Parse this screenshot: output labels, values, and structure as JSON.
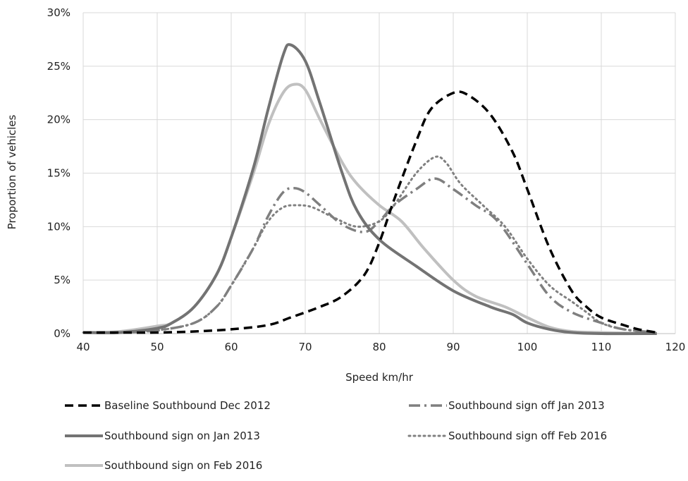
{
  "chart_data": {
    "type": "line",
    "xlabel": "Speed km/hr",
    "ylabel": "Proportion  of vehicles",
    "xlim": [
      40,
      120
    ],
    "ylim": [
      0,
      30
    ],
    "x_ticks": [
      "40",
      "50",
      "60",
      "70",
      "80",
      "90",
      "100",
      "110",
      "120"
    ],
    "x_tick_values": [
      40,
      50,
      60,
      70,
      80,
      90,
      100,
      110,
      120
    ],
    "y_ticks": [
      "0%",
      "5%",
      "10%",
      "15%",
      "20%",
      "25%",
      "30%"
    ],
    "y_tick_values": [
      0,
      5,
      10,
      15,
      20,
      25,
      30
    ],
    "grid": true,
    "legend_position": "bottom",
    "series": [
      {
        "name": "Baseline Southbound Dec 2012",
        "color": "#000000",
        "dash": "long-dash",
        "points": [
          [
            40,
            0.1
          ],
          [
            45,
            0.1
          ],
          [
            50,
            0.1
          ],
          [
            55,
            0.2
          ],
          [
            60,
            0.4
          ],
          [
            65,
            0.8
          ],
          [
            68,
            1.5
          ],
          [
            72,
            2.5
          ],
          [
            75,
            3.5
          ],
          [
            78,
            5.5
          ],
          [
            80,
            8.5
          ],
          [
            82,
            12.5
          ],
          [
            85,
            18
          ],
          [
            87,
            21
          ],
          [
            90,
            22.5
          ],
          [
            92,
            22.3
          ],
          [
            95,
            20.5
          ],
          [
            98,
            17
          ],
          [
            100,
            13.5
          ],
          [
            103,
            8
          ],
          [
            106,
            4
          ],
          [
            108,
            2.5
          ],
          [
            110,
            1.5
          ],
          [
            113,
            0.8
          ],
          [
            115,
            0.4
          ],
          [
            117.5,
            0.1
          ]
        ]
      },
      {
        "name": "Southbound sign off Jan 2013",
        "color": "#7f7f7f",
        "dash": "dash-dot",
        "points": [
          [
            40,
            0.1
          ],
          [
            45,
            0.1
          ],
          [
            50,
            0.3
          ],
          [
            55,
            1.0
          ],
          [
            58,
            2.5
          ],
          [
            60,
            4.5
          ],
          [
            63,
            8
          ],
          [
            65,
            11
          ],
          [
            67,
            13.2
          ],
          [
            68.5,
            13.6
          ],
          [
            70,
            13.2
          ],
          [
            72,
            12
          ],
          [
            75,
            10.2
          ],
          [
            78,
            9.5
          ],
          [
            80,
            10.5
          ],
          [
            82,
            12
          ],
          [
            85,
            13.5
          ],
          [
            87.5,
            14.5
          ],
          [
            90,
            13.5
          ],
          [
            93,
            12
          ],
          [
            96,
            10.5
          ],
          [
            100,
            6.5
          ],
          [
            103,
            3.5
          ],
          [
            106,
            2
          ],
          [
            110,
            1
          ],
          [
            113,
            0.4
          ],
          [
            117.5,
            0.1
          ]
        ]
      },
      {
        "name": "Southbound sign on Jan 2013",
        "color": "#737373",
        "dash": "solid",
        "points": [
          [
            40,
            0.1
          ],
          [
            45,
            0.1
          ],
          [
            50,
            0.5
          ],
          [
            52,
            1.0
          ],
          [
            55,
            2.5
          ],
          [
            58,
            5.5
          ],
          [
            60,
            9
          ],
          [
            63,
            15.5
          ],
          [
            65,
            21
          ],
          [
            67,
            26
          ],
          [
            68,
            27
          ],
          [
            70,
            25.5
          ],
          [
            72,
            21.5
          ],
          [
            75,
            15
          ],
          [
            77,
            11.5
          ],
          [
            80,
            8.8
          ],
          [
            85,
            6.3
          ],
          [
            90,
            4
          ],
          [
            95,
            2.5
          ],
          [
            98,
            1.8
          ],
          [
            100,
            1.0
          ],
          [
            103,
            0.4
          ],
          [
            106,
            0.1
          ],
          [
            110,
            0
          ],
          [
            117.5,
            0
          ]
        ]
      },
      {
        "name": "Southbound sign off Feb 2016",
        "color": "#808080",
        "dash": "dot",
        "points": [
          [
            40,
            0.1
          ],
          [
            45,
            0.1
          ],
          [
            50,
            0.3
          ],
          [
            55,
            1.0
          ],
          [
            58,
            2.5
          ],
          [
            60,
            4.5
          ],
          [
            63,
            8
          ],
          [
            65,
            10.5
          ],
          [
            67,
            11.8
          ],
          [
            69,
            12
          ],
          [
            71,
            11.8
          ],
          [
            74,
            10.8
          ],
          [
            77,
            10
          ],
          [
            80,
            10.5
          ],
          [
            82,
            12
          ],
          [
            85,
            15
          ],
          [
            87.5,
            16.5
          ],
          [
            89,
            16
          ],
          [
            91,
            14
          ],
          [
            94,
            12
          ],
          [
            97,
            10
          ],
          [
            100,
            7
          ],
          [
            103,
            4.5
          ],
          [
            106,
            3
          ],
          [
            108,
            2
          ],
          [
            110,
            1
          ],
          [
            113,
            0.4
          ],
          [
            117.5,
            0.1
          ]
        ]
      },
      {
        "name": "Southbound sign on Feb 2016",
        "color": "#c0c0c0",
        "dash": "solid",
        "points": [
          [
            40,
            0.1
          ],
          [
            45,
            0.2
          ],
          [
            50,
            0.7
          ],
          [
            52,
            1.0
          ],
          [
            55,
            2.5
          ],
          [
            58,
            5.5
          ],
          [
            60,
            9
          ],
          [
            63,
            15
          ],
          [
            65,
            19.5
          ],
          [
            67,
            22.5
          ],
          [
            68.5,
            23.3
          ],
          [
            70,
            22.8
          ],
          [
            72,
            20
          ],
          [
            75,
            16
          ],
          [
            77,
            14
          ],
          [
            80,
            12
          ],
          [
            83,
            10.5
          ],
          [
            86,
            8
          ],
          [
            90,
            5
          ],
          [
            93,
            3.5
          ],
          [
            97,
            2.5
          ],
          [
            100,
            1.5
          ],
          [
            103,
            0.6
          ],
          [
            106,
            0.2
          ],
          [
            110,
            0.1
          ],
          [
            117.5,
            0
          ]
        ]
      }
    ]
  }
}
